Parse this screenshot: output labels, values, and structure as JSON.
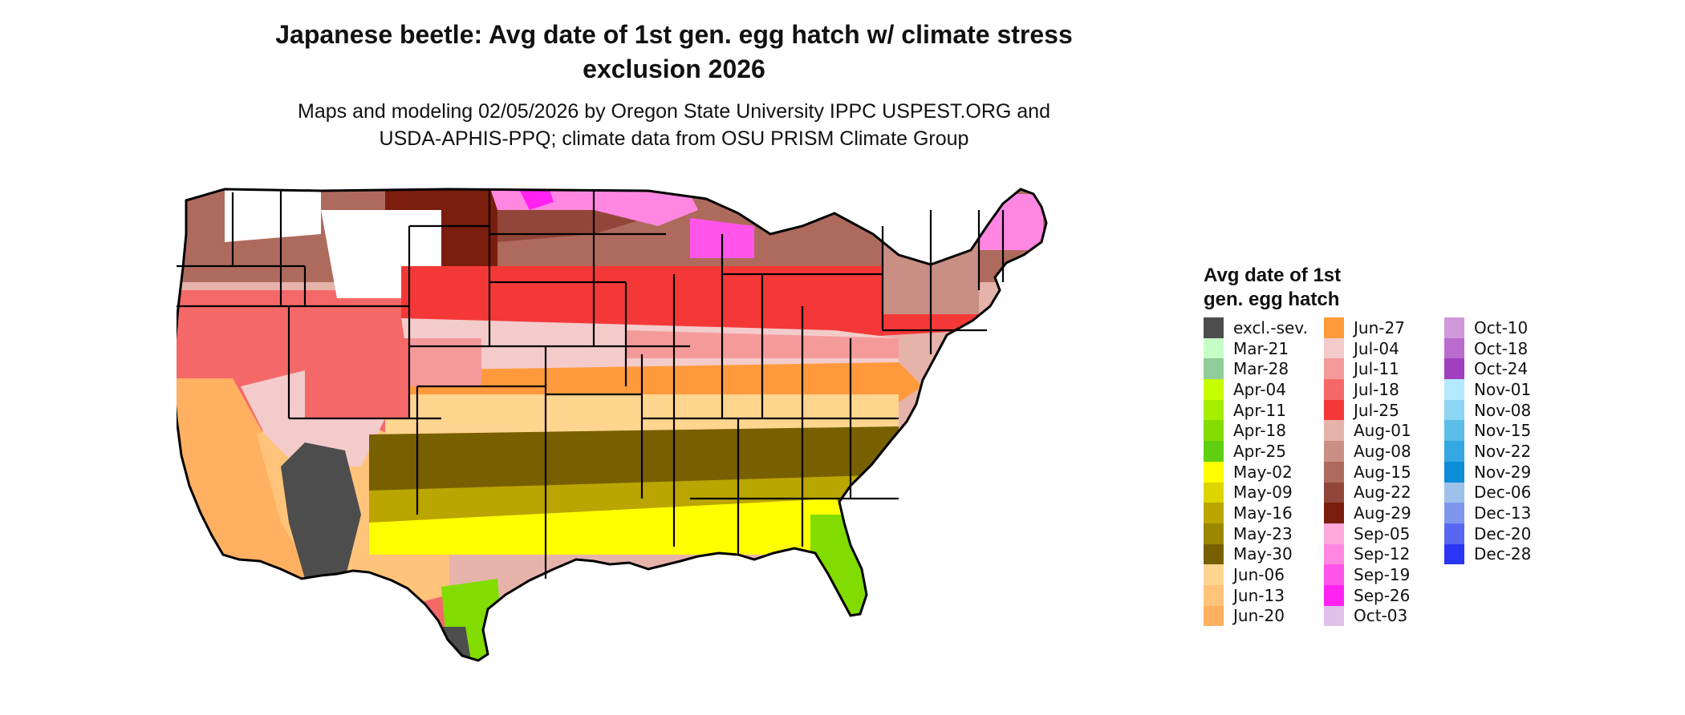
{
  "title": {
    "line1": "Japanese beetle: Avg date of 1st gen. egg hatch w/ climate stress",
    "line2": "exclusion 2026"
  },
  "subtitle": {
    "line1": "Maps and modeling 02/05/2026 by Oregon State University IPPC USPEST.ORG and",
    "line2": "USDA-APHIS-PPQ; climate data from OSU PRISM Climate Group"
  },
  "map": {
    "icon": "conus-state-map",
    "regions": [
      {
        "label": "excl.-sev.",
        "area": "southwest-desert"
      },
      {
        "label": "Mar-21",
        "area": "south-florida-tip"
      },
      {
        "label": "Apr-18",
        "area": "south-texas-florida"
      },
      {
        "label": "May-02",
        "area": "gulf-coast"
      },
      {
        "label": "May-30",
        "area": "deep-south"
      },
      {
        "label": "Jun-13",
        "area": "southern-plains"
      },
      {
        "label": "Jun-27",
        "area": "mid-south"
      },
      {
        "label": "Jul-04",
        "area": "central-plains"
      },
      {
        "label": "Jul-25",
        "area": "corn-belt"
      },
      {
        "label": "Aug-22",
        "area": "northern-plains"
      },
      {
        "label": "Sep-26",
        "area": "northern-border-mountains"
      }
    ]
  },
  "legend": {
    "title_line1": "Avg date of 1st",
    "title_line2": "gen. egg hatch",
    "columns": [
      [
        {
          "label": "excl.-sev.",
          "color": "#4d4d4d"
        },
        {
          "label": "Mar-21",
          "color": "#c5ffc5"
        },
        {
          "label": "Mar-28",
          "color": "#90cc9a"
        },
        {
          "label": "Apr-04",
          "color": "#c8ff00"
        },
        {
          "label": "Apr-11",
          "color": "#a5ee00"
        },
        {
          "label": "Apr-18",
          "color": "#82dc00"
        },
        {
          "label": "Apr-25",
          "color": "#5fcf10"
        },
        {
          "label": "May-02",
          "color": "#ffff00"
        },
        {
          "label": "May-09",
          "color": "#ddd500"
        },
        {
          "label": "May-16",
          "color": "#bba500"
        },
        {
          "label": "May-23",
          "color": "#9b8700"
        },
        {
          "label": "May-30",
          "color": "#786000"
        },
        {
          "label": "Jun-06",
          "color": "#ffd590"
        },
        {
          "label": "Jun-13",
          "color": "#ffc37a"
        },
        {
          "label": "Jun-20",
          "color": "#ffb060"
        }
      ],
      [
        {
          "label": "Jun-27",
          "color": "#ff9a3c"
        },
        {
          "label": "Jul-04",
          "color": "#f4cbcb"
        },
        {
          "label": "Jul-11",
          "color": "#f59a9a"
        },
        {
          "label": "Jul-18",
          "color": "#f46868"
        },
        {
          "label": "Jul-25",
          "color": "#f43838"
        },
        {
          "label": "Aug-01",
          "color": "#e6b3ab"
        },
        {
          "label": "Aug-08",
          "color": "#c98f84"
        },
        {
          "label": "Aug-15",
          "color": "#ae6b5d"
        },
        {
          "label": "Aug-22",
          "color": "#92463a"
        },
        {
          "label": "Aug-29",
          "color": "#7a1d0d"
        },
        {
          "label": "Sep-05",
          "color": "#ffa8dc"
        },
        {
          "label": "Sep-12",
          "color": "#ff87e2"
        },
        {
          "label": "Sep-19",
          "color": "#ff55ea"
        },
        {
          "label": "Sep-26",
          "color": "#ff22f0"
        },
        {
          "label": "Oct-03",
          "color": "#e0c0e8"
        }
      ],
      [
        {
          "label": "Oct-10",
          "color": "#cf99d9"
        },
        {
          "label": "Oct-18",
          "color": "#b96ccd"
        },
        {
          "label": "Oct-24",
          "color": "#a040c0"
        },
        {
          "label": "Nov-01",
          "color": "#b3eaff"
        },
        {
          "label": "Nov-08",
          "color": "#8dd6f3"
        },
        {
          "label": "Nov-15",
          "color": "#5bbde8"
        },
        {
          "label": "Nov-22",
          "color": "#35a7e3"
        },
        {
          "label": "Nov-29",
          "color": "#0c8dd8"
        },
        {
          "label": "Dec-06",
          "color": "#9ec1ea"
        },
        {
          "label": "Dec-13",
          "color": "#7f96ee"
        },
        {
          "label": "Dec-20",
          "color": "#5767f2"
        },
        {
          "label": "Dec-28",
          "color": "#2b35f5"
        }
      ]
    ]
  }
}
